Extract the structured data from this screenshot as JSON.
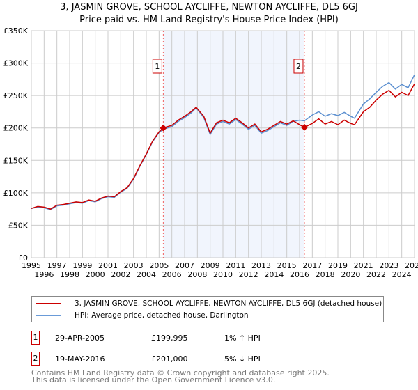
{
  "chart_data": {
    "type": "line",
    "title": "3, JASMIN GROVE, SCHOOL AYCLIFFE, NEWTON AYCLIFFE, DL5 6GJ",
    "subtitle": "Price paid vs. HM Land Registry's House Price Index (HPI)",
    "xlim": [
      1995,
      2025
    ],
    "ylim": [
      0,
      350000
    ],
    "x_ticks": [
      "1995",
      "1996",
      "1997",
      "1998",
      "1999",
      "2000",
      "2001",
      "2002",
      "2003",
      "2004",
      "2005",
      "2006",
      "2007",
      "2008",
      "2009",
      "2010",
      "2011",
      "2012",
      "2013",
      "2014",
      "2015",
      "2016",
      "2017",
      "2018",
      "2019",
      "2020",
      "2021",
      "2022",
      "2023",
      "2024",
      "2025"
    ],
    "y_ticks": [
      {
        "v": 0,
        "l": "£0"
      },
      {
        "v": 50000,
        "l": "£50K"
      },
      {
        "v": 100000,
        "l": "£100K"
      },
      {
        "v": 150000,
        "l": "£150K"
      },
      {
        "v": 200000,
        "l": "£200K"
      },
      {
        "v": 250000,
        "l": "£250K"
      },
      {
        "v": 300000,
        "l": "£300K"
      },
      {
        "v": 350000,
        "l": "£350K"
      }
    ],
    "shaded_range": [
      2005.33,
      2016.38
    ],
    "series": [
      {
        "name": "3, JASMIN GROVE, SCHOOL AYCLIFFE, NEWTON AYCLIFFE, DL5 6GJ (detached house)",
        "color": "#cc0000",
        "x": [
          1995,
          1995.5,
          1996,
          1996.5,
          1997,
          1997.5,
          1998,
          1998.5,
          1999,
          1999.5,
          2000,
          2000.5,
          2001,
          2001.5,
          2002,
          2002.5,
          2003,
          2003.5,
          2004,
          2004.5,
          2005,
          2005.33,
          2006,
          2006.5,
          2007,
          2007.5,
          2007.9,
          2008.5,
          2009,
          2009.5,
          2010,
          2010.5,
          2011,
          2011.5,
          2012,
          2012.5,
          2013,
          2013.5,
          2014,
          2014.5,
          2015,
          2015.5,
          2016,
          2016.38,
          2017,
          2017.5,
          2018,
          2018.5,
          2019,
          2019.5,
          2020,
          2020.3,
          2021,
          2021.5,
          2022,
          2022.5,
          2023,
          2023.5,
          2024,
          2024.5,
          2025
        ],
        "y": [
          76000,
          79000,
          78000,
          75000,
          81000,
          82000,
          84000,
          86000,
          85000,
          89000,
          87000,
          92000,
          95000,
          94000,
          102000,
          108000,
          122000,
          142000,
          160000,
          180000,
          194000,
          199995,
          204000,
          212000,
          218000,
          225000,
          232000,
          218000,
          192000,
          208000,
          212000,
          208000,
          215000,
          208000,
          200000,
          206000,
          194000,
          198000,
          204000,
          210000,
          206000,
          211000,
          205000,
          201000,
          207000,
          214000,
          206000,
          210000,
          205000,
          212000,
          207000,
          205000,
          225000,
          232000,
          243000,
          252000,
          258000,
          248000,
          255000,
          250000,
          268000
        ]
      },
      {
        "name": "HPI: Average price, detached house, Darlington",
        "color": "#5b8fd0",
        "x": [
          1995,
          1995.5,
          1996,
          1996.5,
          1997,
          1997.5,
          1998,
          1998.5,
          1999,
          1999.5,
          2000,
          2000.5,
          2001,
          2001.5,
          2002,
          2002.5,
          2003,
          2003.5,
          2004,
          2004.5,
          2005,
          2005.33,
          2006,
          2006.5,
          2007,
          2007.5,
          2007.9,
          2008.5,
          2009,
          2009.5,
          2010,
          2010.5,
          2011,
          2011.5,
          2012,
          2012.5,
          2013,
          2013.5,
          2014,
          2014.5,
          2015,
          2015.5,
          2016,
          2016.38,
          2017,
          2017.5,
          2018,
          2018.5,
          2019,
          2019.5,
          2020,
          2020.3,
          2021,
          2021.5,
          2022,
          2022.5,
          2023,
          2023.5,
          2024,
          2024.5,
          2025
        ],
        "y": [
          76000,
          78000,
          77000,
          74000,
          80000,
          81000,
          83000,
          85000,
          84000,
          88000,
          86000,
          91000,
          94000,
          93000,
          101000,
          107000,
          121000,
          141000,
          159000,
          179000,
          193000,
          198000,
          202000,
          210000,
          216000,
          223000,
          231000,
          216000,
          190000,
          206000,
          210000,
          206000,
          213000,
          206000,
          198000,
          204000,
          192000,
          196000,
          202000,
          208000,
          204000,
          210000,
          212000,
          211000,
          220000,
          225000,
          218000,
          222000,
          219000,
          224000,
          218000,
          215000,
          237000,
          245000,
          255000,
          264000,
          270000,
          260000,
          267000,
          262000,
          282000
        ]
      }
    ],
    "annotations": [
      {
        "label": "1",
        "x": 2005.33,
        "y": 199995
      },
      {
        "label": "2",
        "x": 2016.38,
        "y": 201000
      }
    ]
  },
  "legend": {
    "items": [
      "3, JASMIN GROVE, SCHOOL AYCLIFFE, NEWTON AYCLIFFE, DL5 6GJ (detached house)",
      "HPI: Average price, detached house, Darlington"
    ]
  },
  "transactions": [
    {
      "num": "1",
      "date": "29-APR-2005",
      "price": "£199,995",
      "hpi": "1% ↑ HPI"
    },
    {
      "num": "2",
      "date": "19-MAY-2016",
      "price": "£201,000",
      "hpi": "5% ↓ HPI"
    }
  ],
  "footer": {
    "line1": "Contains HM Land Registry data © Crown copyright and database right 2025.",
    "line2": "This data is licensed under the Open Government Licence v3.0."
  }
}
